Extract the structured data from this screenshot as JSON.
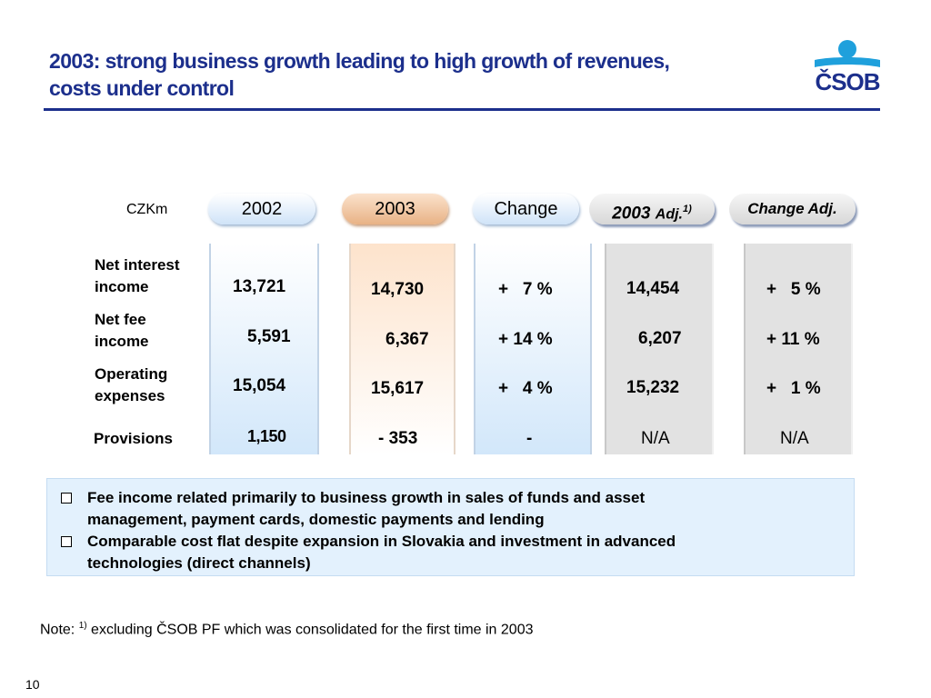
{
  "title": {
    "line1": "2003:  strong business growth leading to high growth of revenues,",
    "line2": "costs under control"
  },
  "logo": {
    "text": "ČSOB",
    "color": "#1c2f8c",
    "accent": "#1fa0dc"
  },
  "table": {
    "unit": "CZKm",
    "headers": {
      "y2002": "2002",
      "y2003": "2003",
      "change": "Change",
      "adj2003": "2003",
      "adj2003_suffix": "Adj.",
      "adj2003_sup": "1)",
      "change_adj": "Change Adj."
    },
    "rows": [
      {
        "label_l1": "Net interest",
        "label_l2": "income",
        "y2002": "13,721",
        "y2003": "14,730",
        "change": "+   7 %",
        "adj2003": "14,454",
        "change_adj": "+   5 %"
      },
      {
        "label_l1": "Net fee",
        "label_l2": "income",
        "y2002": "5,591",
        "y2003": "6,367",
        "change": "+ 14 %",
        "adj2003": "6,207",
        "change_adj": "+ 11 %"
      },
      {
        "label_l1": "Operating",
        "label_l2": "expenses",
        "y2002": "15,054",
        "y2003": "15,617",
        "change": "+   4 %",
        "adj2003": "15,232",
        "change_adj": "+   1 %"
      },
      {
        "label_l1": "Provisions",
        "label_l2": "",
        "y2002": "1,150",
        "y2003": "- 353",
        "change": "-",
        "adj2003": "N/A",
        "change_adj": "N/A"
      }
    ]
  },
  "bullets": [
    {
      "line1": "Fee income related primarily to business growth in sales of funds and asset",
      "line2": "management, payment cards, domestic payments and lending"
    },
    {
      "line1": "Comparable cost flat despite expansion in Slovakia and investment in advanced",
      "line2": "technologies (direct channels)"
    }
  ],
  "footnote": {
    "prefix": "Note: ",
    "sup": "1)",
    "text": " excluding ČSOB PF which was consolidated for the first time in 2003"
  },
  "page_number": "10",
  "colors": {
    "title": "#1c2f8c",
    "highlight_2003": "#e8b285",
    "notes_bg": "#e3f1fd"
  }
}
